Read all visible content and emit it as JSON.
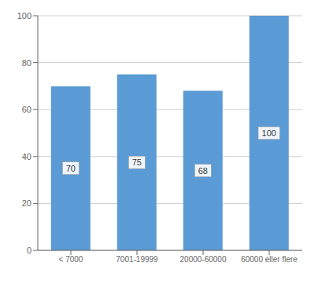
{
  "chart_data": {
    "type": "bar",
    "categories": [
      "< 7000",
      "7001-19999",
      "20000-60000",
      "60000 eller flere"
    ],
    "values": [
      70,
      75,
      68,
      100
    ],
    "color": "#5b9bd5",
    "ylim": [
      0,
      100
    ],
    "yticks": [
      0,
      20,
      40,
      60,
      80,
      100
    ],
    "grid": true,
    "data_labels": true
  }
}
